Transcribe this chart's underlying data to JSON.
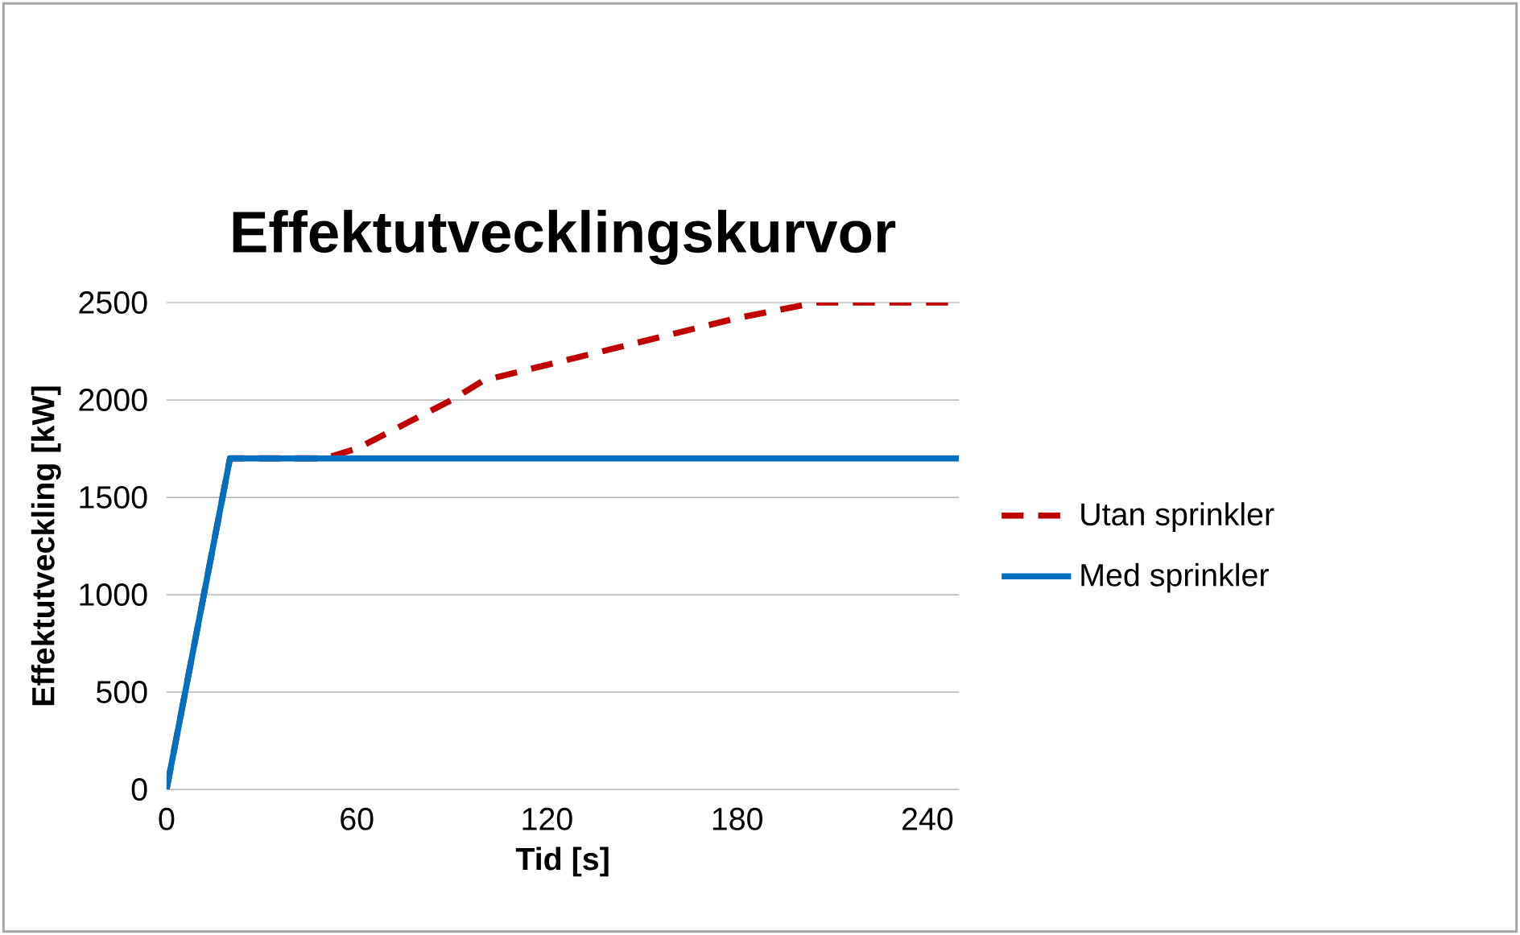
{
  "chart_data": {
    "type": "line",
    "title": "Effektutvecklingskurvor",
    "xlabel": "Tid [s]",
    "ylabel": "Effektutveckling [kW]",
    "xlim": [
      0,
      250
    ],
    "xticks": [
      0,
      60,
      120,
      180,
      240
    ],
    "ylim": [
      0,
      2500
    ],
    "yticks": [
      0,
      500,
      1000,
      1500,
      2000,
      2500
    ],
    "grid": "y",
    "legend": "right",
    "series": [
      {
        "name": "Utan sprinkler",
        "color": "#c00000",
        "line_style": "dashed",
        "x": [
          0,
          20,
          50,
          60,
          90,
          100,
          120,
          150,
          180,
          205,
          250
        ],
        "values": [
          0,
          1700,
          1700,
          1750,
          2000,
          2100,
          2180,
          2300,
          2420,
          2500,
          2500
        ]
      },
      {
        "name": "Med sprinkler",
        "color": "#0070c0",
        "line_style": "solid",
        "x": [
          0,
          20,
          250
        ],
        "values": [
          0,
          1700,
          1700
        ]
      }
    ]
  }
}
